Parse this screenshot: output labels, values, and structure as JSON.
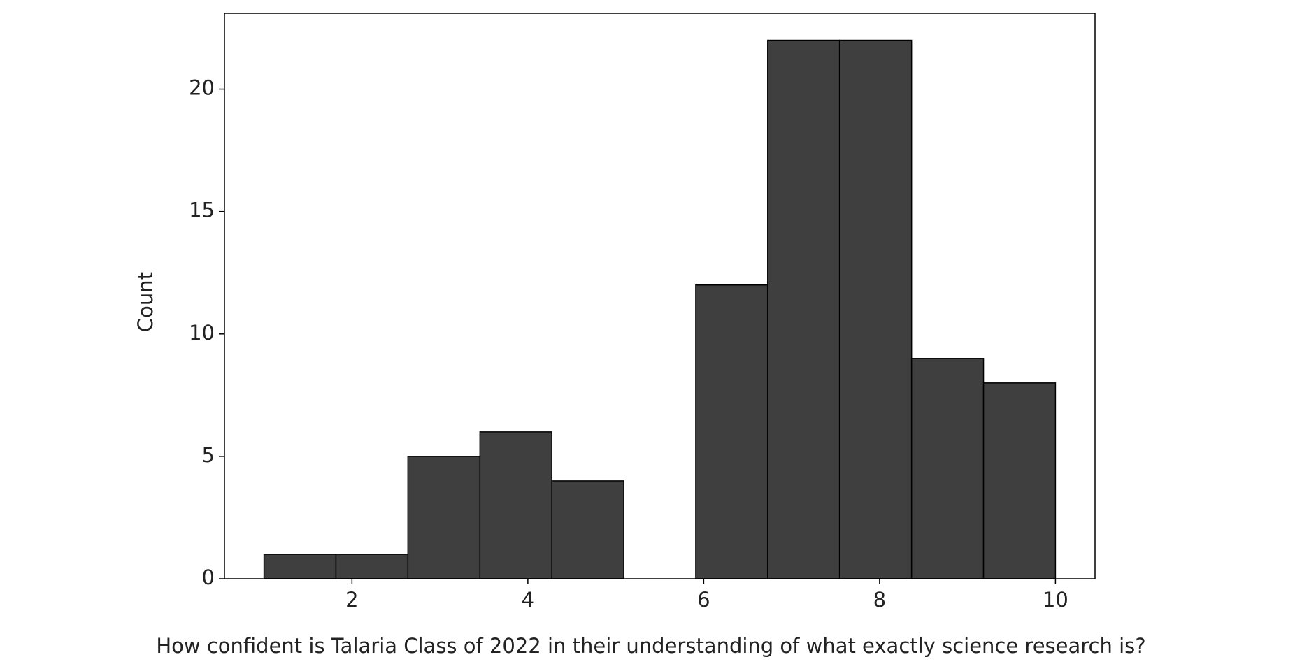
{
  "chart_data": {
    "type": "histogram",
    "x_label": "How confident is Talaria Class of 2022 in their understanding of what exactly science research is?",
    "y_label": "Count",
    "bins": [
      1,
      1.818,
      2.636,
      3.455,
      4.273,
      5.091,
      5.909,
      6.727,
      7.545,
      8.364,
      9.182,
      10
    ],
    "counts": [
      1,
      1,
      5,
      6,
      4,
      0,
      12,
      22,
      22,
      9,
      8
    ],
    "color": "#3f3f3f",
    "xlim": [
      0.55,
      10.45
    ],
    "xticks": [
      2,
      4,
      6,
      8,
      10
    ],
    "ylim": [
      0,
      23.1
    ],
    "yticks": [
      0,
      5,
      10,
      15,
      20
    ]
  }
}
